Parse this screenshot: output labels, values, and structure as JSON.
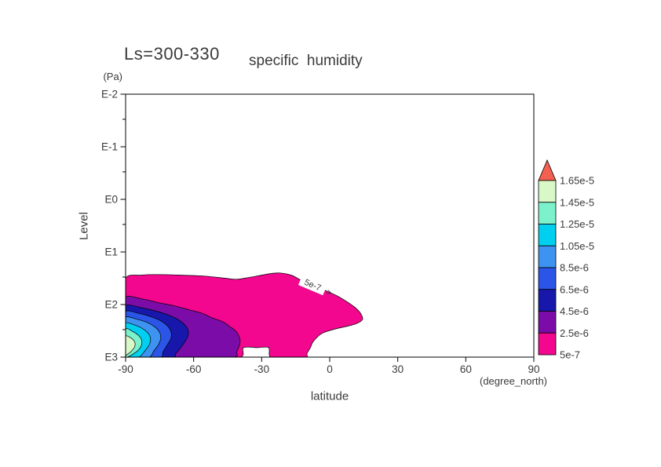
{
  "chart_data": {
    "type": "contour",
    "title_ls": "Ls=300-330",
    "title_variable": "specific  humidity",
    "axes": {
      "y_unit": "(Pa)",
      "y_label": "Level",
      "y_tick_labels": [
        "E-2",
        "E-1",
        "E0",
        "E1",
        "E2",
        "E3"
      ],
      "y_tick_logs": [
        -2,
        -1,
        0,
        1,
        2,
        3
      ],
      "y_minor_fraction": 0.477,
      "y_log_range": [
        -2,
        3
      ],
      "x_label": "latitude",
      "x_unit": "(degree_north)",
      "x_ticks": [
        -90,
        -60,
        -30,
        0,
        30,
        60,
        90
      ],
      "x_range": [
        -90,
        90
      ]
    },
    "colors": {
      "text": "#3a3a3a",
      "frame": "#000000",
      "background": "#ffffff"
    },
    "levels": [
      "5e-7",
      "2.5e-6",
      "4.5e-6",
      "6.5e-6",
      "8.5e-6",
      "1.05e-5",
      "1.25e-5",
      "1.45e-5",
      "1.65e-5"
    ],
    "inline_label": {
      "text": "5e-7",
      "arrow_mark": ">",
      "lat": -7.5,
      "log_level": 1.63,
      "angle_deg": 23
    },
    "colorbar": {
      "labels_top_to_bottom": [
        "1.65e-5",
        "1.45e-5",
        "1.25e-5",
        "1.05e-5",
        "8.5e-6",
        "6.5e-6",
        "4.5e-6",
        "2.5e-6",
        "5e-7"
      ],
      "segment_colors_top_to_bottom": [
        "#d8f8c8",
        "#7df0cc",
        "#00cfef",
        "#3f93f0",
        "#2a55e6",
        "#1717ac",
        "#7c0ca8",
        "#f2078e"
      ],
      "arrow_color": "#f4604f",
      "outline": "#000000"
    },
    "regions": [
      {
        "level": "5e-7",
        "color": "#f2078e",
        "points": [
          [
            -90,
            1.5
          ],
          [
            -83,
            1.44
          ],
          [
            -76,
            1.43
          ],
          [
            -66,
            1.44
          ],
          [
            -55,
            1.46
          ],
          [
            -46,
            1.5
          ],
          [
            -41,
            1.52
          ],
          [
            -35,
            1.48
          ],
          [
            -31,
            1.45
          ],
          [
            -26,
            1.41
          ],
          [
            -22,
            1.4
          ],
          [
            -17,
            1.44
          ],
          [
            -12,
            1.55
          ],
          [
            -7,
            1.63
          ],
          [
            -2,
            1.73
          ],
          [
            3,
            1.83
          ],
          [
            7,
            1.93
          ],
          [
            11,
            2.05
          ],
          [
            13.5,
            2.16
          ],
          [
            14.5,
            2.28
          ],
          [
            12,
            2.36
          ],
          [
            8,
            2.41
          ],
          [
            2,
            2.47
          ],
          [
            -3,
            2.54
          ],
          [
            -5.5,
            2.62
          ],
          [
            -7.5,
            2.72
          ],
          [
            -8.5,
            2.82
          ],
          [
            -10,
            2.93
          ],
          [
            -10.5,
            3.0
          ],
          [
            -18,
            3.0
          ],
          [
            -26,
            3.0
          ],
          [
            -27,
            2.82
          ],
          [
            -32,
            2.82
          ],
          [
            -38,
            2.82
          ],
          [
            -39.5,
            3.0
          ],
          [
            -55,
            3.0
          ],
          [
            -70,
            3.0
          ],
          [
            -90,
            3.0
          ],
          [
            -90,
            2.5
          ],
          [
            -90,
            2.0
          ]
        ]
      },
      {
        "level": "2.5e-6",
        "color": "#7c0ca8",
        "points": [
          [
            -90,
            1.86
          ],
          [
            -82,
            1.9
          ],
          [
            -76,
            1.96
          ],
          [
            -69,
            2.02
          ],
          [
            -62,
            2.1
          ],
          [
            -56,
            2.17
          ],
          [
            -52,
            2.25
          ],
          [
            -47,
            2.33
          ],
          [
            -44,
            2.42
          ],
          [
            -41.5,
            2.5
          ],
          [
            -40,
            2.6
          ],
          [
            -39.5,
            2.7
          ],
          [
            -40,
            2.8
          ],
          [
            -41,
            2.9
          ],
          [
            -42.5,
            3.0
          ],
          [
            -60,
            3.0
          ],
          [
            -75,
            3.0
          ],
          [
            -90,
            3.0
          ],
          [
            -90,
            2.6
          ],
          [
            -90,
            2.2
          ]
        ]
      },
      {
        "level": "4.5e-6",
        "color": "#1717ac",
        "points": [
          [
            -90,
            2.02
          ],
          [
            -83,
            2.06
          ],
          [
            -77,
            2.12
          ],
          [
            -71,
            2.2
          ],
          [
            -67,
            2.28
          ],
          [
            -64,
            2.38
          ],
          [
            -62.5,
            2.48
          ],
          [
            -62.5,
            2.6
          ],
          [
            -64,
            2.72
          ],
          [
            -66,
            2.84
          ],
          [
            -68,
            2.94
          ],
          [
            -69,
            3.0
          ],
          [
            -80,
            3.0
          ],
          [
            -90,
            3.0
          ],
          [
            -90,
            2.65
          ],
          [
            -90,
            2.3
          ]
        ]
      },
      {
        "level": "6.5e-6",
        "color": "#2a55e6",
        "points": [
          [
            -90,
            2.13
          ],
          [
            -84,
            2.17
          ],
          [
            -79,
            2.23
          ],
          [
            -74.5,
            2.31
          ],
          [
            -71.5,
            2.41
          ],
          [
            -70,
            2.52
          ],
          [
            -70,
            2.64
          ],
          [
            -71.5,
            2.76
          ],
          [
            -73.5,
            2.9
          ],
          [
            -74.5,
            3.0
          ],
          [
            -82,
            3.0
          ],
          [
            -90,
            3.0
          ],
          [
            -90,
            2.65
          ],
          [
            -90,
            2.38
          ]
        ]
      },
      {
        "level": "8.5e-6",
        "color": "#3f93f0",
        "points": [
          [
            -90,
            2.24
          ],
          [
            -85,
            2.28
          ],
          [
            -80.5,
            2.34
          ],
          [
            -77,
            2.43
          ],
          [
            -75,
            2.53
          ],
          [
            -74.5,
            2.64
          ],
          [
            -75.5,
            2.76
          ],
          [
            -77.5,
            2.88
          ],
          [
            -79.5,
            3.0
          ],
          [
            -85,
            3.0
          ],
          [
            -90,
            3.0
          ],
          [
            -90,
            2.7
          ],
          [
            -90,
            2.45
          ]
        ]
      },
      {
        "level": "1.05e-5",
        "color": "#00cfef",
        "points": [
          [
            -90,
            2.35
          ],
          [
            -86,
            2.39
          ],
          [
            -82.5,
            2.46
          ],
          [
            -80,
            2.55
          ],
          [
            -79,
            2.65
          ],
          [
            -79.5,
            2.76
          ],
          [
            -81.5,
            2.88
          ],
          [
            -84,
            3.0
          ],
          [
            -87,
            3.0
          ],
          [
            -90,
            3.0
          ],
          [
            -90,
            2.75
          ],
          [
            -90,
            2.52
          ]
        ]
      },
      {
        "level": "1.25e-5",
        "color": "#7df0cc",
        "points": [
          [
            -90,
            2.47
          ],
          [
            -87,
            2.51
          ],
          [
            -84.5,
            2.58
          ],
          [
            -83,
            2.67
          ],
          [
            -83,
            2.77
          ],
          [
            -84.5,
            2.87
          ],
          [
            -87,
            2.95
          ],
          [
            -88.5,
            2.985
          ],
          [
            -90,
            2.99
          ],
          [
            -90,
            2.75
          ]
        ]
      },
      {
        "level": "1.45e-5",
        "color": "#d8f8c8",
        "points": [
          [
            -90,
            2.6
          ],
          [
            -87.5,
            2.64
          ],
          [
            -86,
            2.71
          ],
          [
            -86,
            2.8
          ],
          [
            -87.5,
            2.89
          ],
          [
            -89.5,
            2.955
          ],
          [
            -90,
            2.96
          ],
          [
            -90,
            2.78
          ]
        ]
      }
    ]
  }
}
